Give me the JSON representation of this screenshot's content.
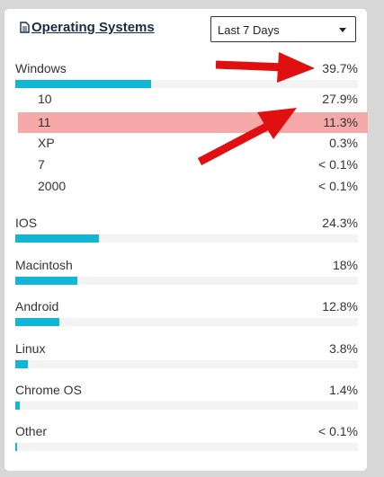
{
  "header": {
    "title": "Operating Systems",
    "range_selected": "Last 7 Days"
  },
  "colors": {
    "bar": "#0fb6d5",
    "highlight": "#f5a9a9",
    "arrow": "#e01010"
  },
  "windows": {
    "name": "Windows",
    "pct": "39.7%",
    "share": 39.7,
    "versions": [
      {
        "name": "10",
        "pct": "27.9%"
      },
      {
        "name": "11",
        "pct": "11.3%",
        "highlighted": true
      },
      {
        "name": "XP",
        "pct": "0.3%"
      },
      {
        "name": "7",
        "pct": "< 0.1%"
      },
      {
        "name": "2000",
        "pct": "< 0.1%"
      }
    ]
  },
  "others": [
    {
      "name": "IOS",
      "pct": "24.3%",
      "share": 24.3
    },
    {
      "name": "Macintosh",
      "pct": "18%",
      "share": 18
    },
    {
      "name": "Android",
      "pct": "12.8%",
      "share": 12.8
    },
    {
      "name": "Linux",
      "pct": "3.8%",
      "share": 3.8
    },
    {
      "name": "Chrome OS",
      "pct": "1.4%",
      "share": 1.4
    },
    {
      "name": "Other",
      "pct": "< 0.1%",
      "share": 0.1
    }
  ]
}
